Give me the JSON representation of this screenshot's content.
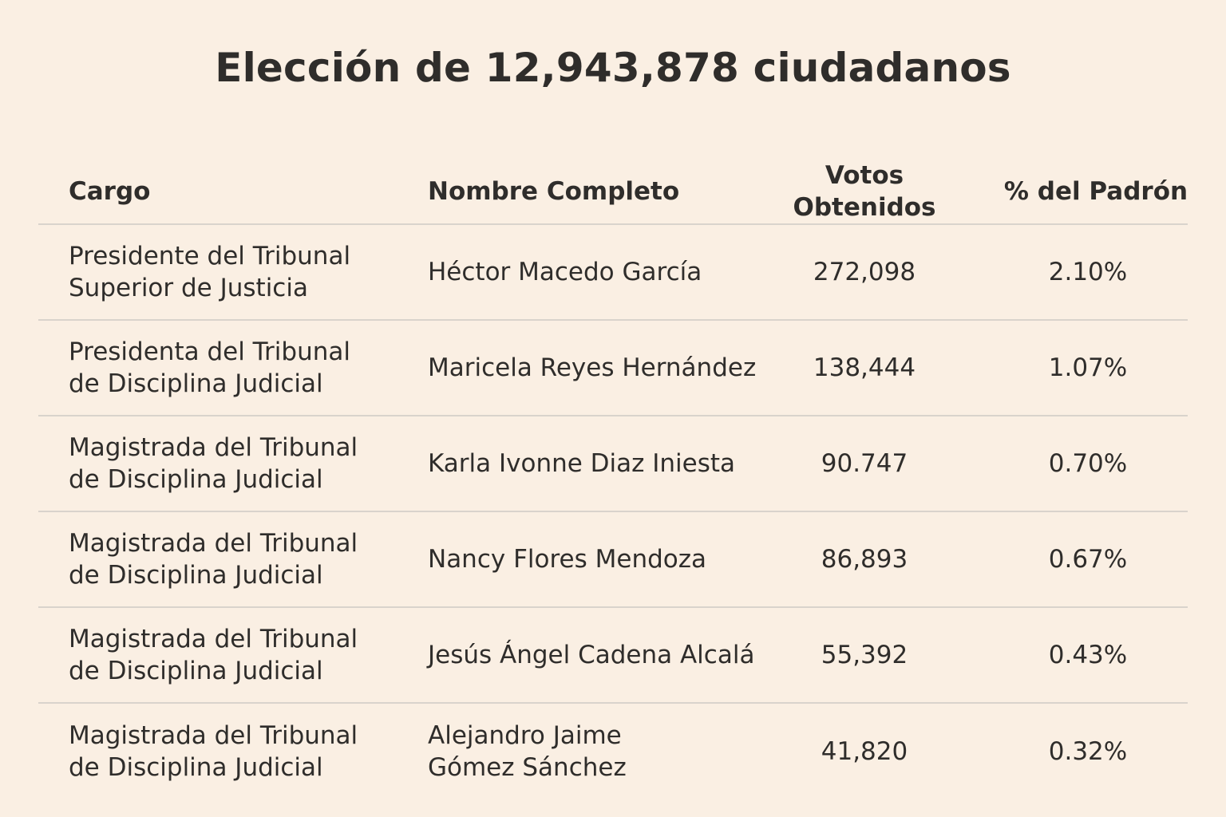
{
  "title": "Elección de 12,943,878 ciudadanos",
  "table": {
    "headers": {
      "cargo": "Cargo",
      "nombre": "Nombre Completo",
      "votos": "Votos Obtenidos",
      "pct": "% del Padrón"
    },
    "rows": [
      {
        "cargo": "Presidente del Tribunal\nSuperior de Justicia",
        "nombre": "Héctor Macedo García",
        "votos": "272,098",
        "pct": "2.10%"
      },
      {
        "cargo": "Presidenta del Tribunal\nde Disciplina Judicial",
        "nombre": "Maricela Reyes Hernández",
        "votos": "138,444",
        "pct": "1.07%"
      },
      {
        "cargo": "Magistrada del Tribunal\nde Disciplina Judicial",
        "nombre": "Karla Ivonne Diaz Iniesta",
        "votos": "90.747",
        "pct": "0.70%"
      },
      {
        "cargo": "Magistrada del Tribunal\nde Disciplina Judicial",
        "nombre": "Nancy Flores Mendoza",
        "votos": "86,893",
        "pct": "0.67%"
      },
      {
        "cargo": "Magistrada del Tribunal\nde Disciplina Judicial",
        "nombre": "Jesús Ángel Cadena Alcalá",
        "votos": "55,392",
        "pct": "0.43%"
      },
      {
        "cargo": "Magistrada del Tribunal\nde Disciplina Judicial",
        "nombre": "Alejandro Jaime\nGómez Sánchez",
        "votos": "41,820",
        "pct": "0.32%"
      }
    ]
  }
}
